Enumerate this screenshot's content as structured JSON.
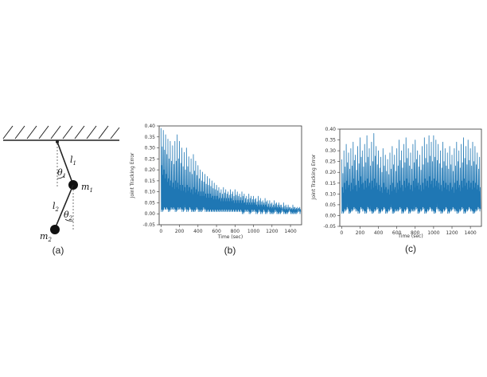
{
  "pendulum": {
    "labels": {
      "l1": "l",
      "l1_sub": "1",
      "theta1": "θ",
      "theta1_sub": "1",
      "m1": "m",
      "m1_sub": "1",
      "l2": "l",
      "l2_sub": "2",
      "theta2": "θ",
      "theta2_sub": "2",
      "m2": "m",
      "m2_sub": "2"
    },
    "caption": "(a)"
  },
  "chart_data": [
    {
      "type": "line",
      "caption": "(b)",
      "xlabel": "Time (sec)",
      "ylabel": "Joint Tracking Error",
      "xlim": [
        -20,
        1520
      ],
      "ylim": [
        -0.05,
        0.4
      ],
      "xticks": [
        0,
        200,
        400,
        600,
        800,
        1000,
        1200,
        1400
      ],
      "yticks": [
        -0.05,
        0.0,
        0.05,
        0.1,
        0.15,
        0.2,
        0.25,
        0.3,
        0.35,
        0.4
      ],
      "color": "#1f77b4",
      "series": [
        {
          "name": "",
          "x": [
            0,
            25,
            50,
            75,
            100,
            125,
            150,
            175,
            200,
            225,
            250,
            275,
            300,
            325,
            350,
            375,
            400,
            425,
            450,
            475,
            500,
            525,
            550,
            575,
            600,
            625,
            650,
            675,
            700,
            725,
            750,
            775,
            800,
            825,
            850,
            875,
            900,
            925,
            950,
            975,
            1000,
            1025,
            1050,
            1075,
            1100,
            1125,
            1150,
            1175,
            1200,
            1225,
            1250,
            1275,
            1300,
            1325,
            1350,
            1375,
            1400,
            1425,
            1450,
            1475,
            1500
          ],
          "upper": [
            0.39,
            0.38,
            0.36,
            0.34,
            0.33,
            0.31,
            0.33,
            0.36,
            0.33,
            0.3,
            0.28,
            0.3,
            0.26,
            0.25,
            0.27,
            0.24,
            0.22,
            0.2,
            0.19,
            0.18,
            0.17,
            0.16,
            0.15,
            0.14,
            0.13,
            0.12,
            0.11,
            0.12,
            0.11,
            0.1,
            0.11,
            0.1,
            0.11,
            0.1,
            0.09,
            0.1,
            0.09,
            0.08,
            0.09,
            0.08,
            0.08,
            0.07,
            0.08,
            0.07,
            0.06,
            0.07,
            0.06,
            0.06,
            0.05,
            0.06,
            0.05,
            0.05,
            0.04,
            0.05,
            0.04,
            0.04,
            0.03,
            0.04,
            0.03,
            0.03,
            0.03
          ],
          "mid": [
            0.22,
            0.2,
            0.18,
            0.16,
            0.15,
            0.14,
            0.15,
            0.14,
            0.13,
            0.13,
            0.12,
            0.13,
            0.12,
            0.11,
            0.12,
            0.11,
            0.1,
            0.1,
            0.1,
            0.09,
            0.09,
            0.09,
            0.08,
            0.08,
            0.08,
            0.07,
            0.07,
            0.07,
            0.07,
            0.07,
            0.07,
            0.06,
            0.06,
            0.06,
            0.06,
            0.06,
            0.05,
            0.05,
            0.05,
            0.05,
            0.05,
            0.04,
            0.04,
            0.04,
            0.04,
            0.04,
            0.03,
            0.03,
            0.03,
            0.03,
            0.03,
            0.03,
            0.02,
            0.02,
            0.02,
            0.02,
            0.02,
            0.02,
            0.02,
            0.02,
            0.02
          ],
          "lower": [
            0.01,
            0.02,
            0.02,
            0.01,
            0.02,
            0.02,
            0.01,
            0.02,
            0.02,
            0.01,
            0.02,
            0.01,
            0.02,
            0.01,
            0.01,
            0.02,
            0.01,
            0.01,
            0.02,
            0.01,
            0.01,
            0.01,
            0.01,
            0.01,
            0.01,
            0.01,
            0.01,
            0.01,
            0.01,
            0.01,
            0.01,
            0.01,
            0.01,
            0.01,
            0.01,
            0.0,
            0.01,
            0.01,
            0.0,
            0.01,
            0.01,
            0.0,
            0.01,
            0.0,
            0.01,
            0.0,
            0.01,
            0.0,
            0.0,
            0.01,
            0.0,
            0.0,
            0.01,
            0.0,
            0.0,
            0.01,
            0.0,
            0.0,
            0.0,
            0.01,
            0.0
          ]
        }
      ]
    },
    {
      "type": "line",
      "caption": "(c)",
      "xlabel": "Time (sec)",
      "ylabel": "Joint Tracking Error",
      "xlim": [
        -20,
        1520
      ],
      "ylim": [
        -0.05,
        0.4
      ],
      "xticks": [
        0,
        200,
        400,
        600,
        800,
        1000,
        1200,
        1400
      ],
      "yticks": [
        -0.05,
        0.0,
        0.05,
        0.1,
        0.15,
        0.2,
        0.25,
        0.3,
        0.35,
        0.4
      ],
      "color": "#1f77b4",
      "series": [
        {
          "name": "",
          "x": [
            0,
            25,
            50,
            75,
            100,
            125,
            150,
            175,
            200,
            225,
            250,
            275,
            300,
            325,
            350,
            375,
            400,
            425,
            450,
            475,
            500,
            525,
            550,
            575,
            600,
            625,
            650,
            675,
            700,
            725,
            750,
            775,
            800,
            825,
            850,
            875,
            900,
            925,
            950,
            975,
            1000,
            1025,
            1050,
            1075,
            1100,
            1125,
            1150,
            1175,
            1200,
            1225,
            1250,
            1275,
            1300,
            1325,
            1350,
            1375,
            1400,
            1425,
            1450,
            1475,
            1500
          ],
          "upper": [
            0.26,
            0.3,
            0.33,
            0.29,
            0.31,
            0.34,
            0.28,
            0.32,
            0.36,
            0.3,
            0.33,
            0.37,
            0.31,
            0.34,
            0.38,
            0.32,
            0.3,
            0.27,
            0.31,
            0.28,
            0.26,
            0.29,
            0.32,
            0.28,
            0.31,
            0.35,
            0.3,
            0.33,
            0.36,
            0.31,
            0.29,
            0.33,
            0.35,
            0.3,
            0.28,
            0.32,
            0.36,
            0.33,
            0.37,
            0.34,
            0.37,
            0.35,
            0.33,
            0.3,
            0.34,
            0.31,
            0.29,
            0.32,
            0.28,
            0.31,
            0.34,
            0.3,
            0.33,
            0.36,
            0.32,
            0.35,
            0.31,
            0.34,
            0.32,
            0.29,
            0.27
          ],
          "mid": [
            0.13,
            0.15,
            0.16,
            0.14,
            0.15,
            0.17,
            0.14,
            0.16,
            0.18,
            0.15,
            0.16,
            0.17,
            0.15,
            0.16,
            0.17,
            0.15,
            0.14,
            0.13,
            0.15,
            0.13,
            0.12,
            0.14,
            0.15,
            0.13,
            0.15,
            0.16,
            0.14,
            0.16,
            0.17,
            0.15,
            0.14,
            0.16,
            0.17,
            0.15,
            0.14,
            0.15,
            0.17,
            0.16,
            0.18,
            0.16,
            0.17,
            0.16,
            0.15,
            0.14,
            0.16,
            0.15,
            0.14,
            0.15,
            0.13,
            0.15,
            0.16,
            0.14,
            0.16,
            0.17,
            0.15,
            0.16,
            0.15,
            0.16,
            0.15,
            0.14,
            0.13
          ],
          "lower": [
            0.01,
            0.02,
            0.03,
            0.01,
            0.02,
            0.03,
            0.02,
            0.01,
            0.03,
            0.02,
            0.01,
            0.03,
            0.02,
            0.01,
            0.02,
            0.03,
            0.01,
            0.02,
            0.03,
            0.01,
            0.02,
            0.03,
            0.01,
            0.02,
            0.02,
            0.03,
            0.01,
            0.02,
            0.03,
            0.01,
            0.02,
            0.02,
            0.03,
            0.01,
            0.02,
            0.03,
            0.01,
            0.02,
            0.03,
            0.02,
            0.01,
            0.03,
            0.02,
            0.01,
            0.02,
            0.03,
            0.01,
            0.02,
            0.03,
            0.02,
            0.01,
            0.02,
            0.03,
            0.01,
            0.02,
            0.03,
            0.02,
            0.01,
            0.02,
            0.03,
            0.02
          ]
        }
      ]
    }
  ]
}
